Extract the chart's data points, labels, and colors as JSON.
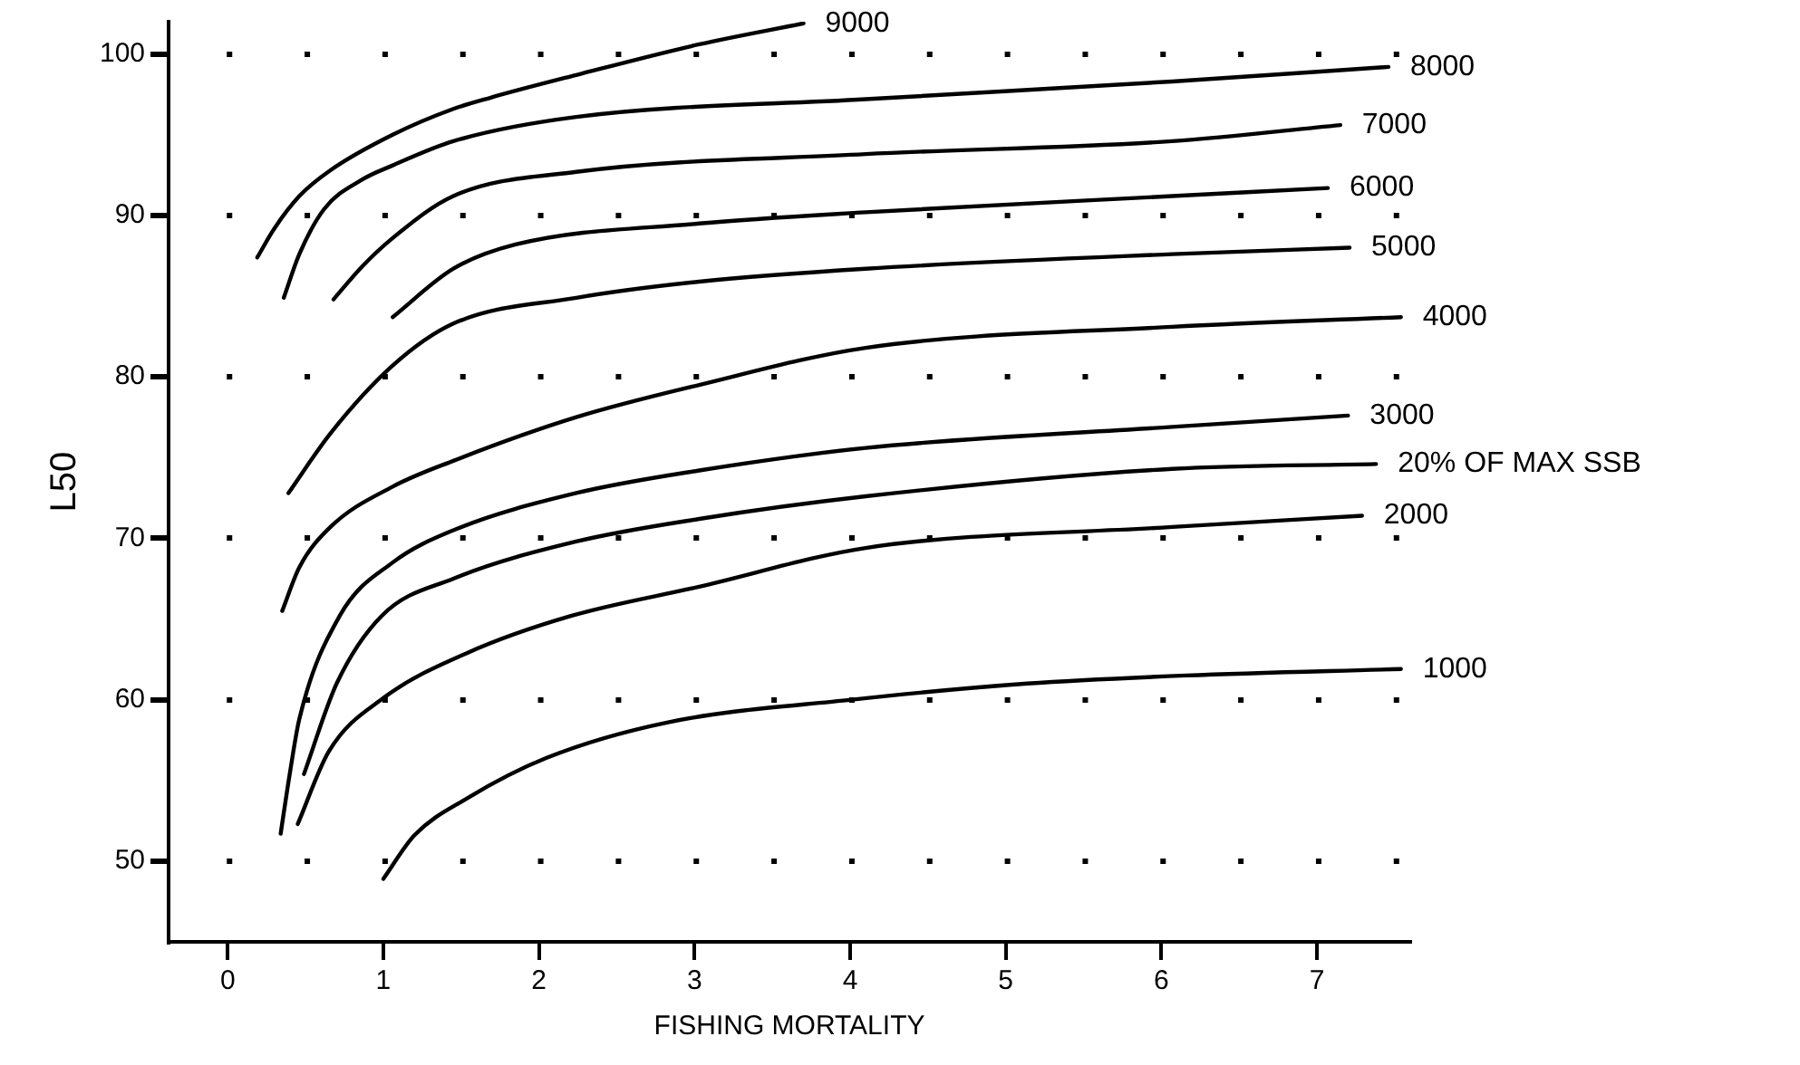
{
  "chart_data": {
    "type": "line",
    "xlabel": "FISHING MORTALITY",
    "ylabel": "L50",
    "xlim": [
      -0.38,
      7.6
    ],
    "ylim": [
      45,
      102
    ],
    "xticks": [
      0,
      1,
      2,
      3,
      4,
      5,
      6,
      7
    ],
    "yticks": [
      50,
      60,
      70,
      80,
      90,
      100
    ],
    "grid": "y",
    "legend": false,
    "marker": "none",
    "line_style": "solid",
    "series": [
      {
        "name": "9000",
        "color": "#000000",
        "x": [
          0.19,
          0.3,
          0.46,
          0.66,
          1.06,
          1.45,
          1.69,
          2.24,
          3.03,
          3.7
        ],
        "values": [
          87.4,
          89.2,
          91.2,
          92.8,
          95.0,
          96.6,
          97.3,
          98.7,
          100.6,
          101.9
        ]
      },
      {
        "name": "8000",
        "color": "#000000",
        "x": [
          0.36,
          0.46,
          0.62,
          0.86,
          1.06,
          1.45,
          2.24,
          4.1,
          6.07,
          7.46
        ],
        "values": [
          84.9,
          87.6,
          90.4,
          92.2,
          93.1,
          94.6,
          96.1,
          97.2,
          98.3,
          99.2
        ]
      },
      {
        "name": "7000",
        "color": "#000000",
        "x": [
          0.68,
          0.86,
          1.06,
          1.45,
          2.24,
          4.1,
          6.07,
          7.15
        ],
        "values": [
          84.8,
          86.8,
          88.6,
          91.2,
          92.7,
          93.8,
          94.6,
          95.6
        ]
      },
      {
        "name": "6000",
        "color": "#000000",
        "x": [
          1.06,
          1.45,
          1.85,
          3.03,
          4.1,
          6.07,
          7.07
        ],
        "values": [
          83.7,
          86.7,
          88.2,
          89.5,
          90.2,
          91.2,
          91.7
        ]
      },
      {
        "name": "5000",
        "color": "#000000",
        "x": [
          0.39,
          0.66,
          1.06,
          1.45,
          2.24,
          3.03,
          4.1,
          6.07,
          7.21
        ],
        "values": [
          72.8,
          76.5,
          80.7,
          83.3,
          84.9,
          85.9,
          86.7,
          87.6,
          88.0
        ]
      },
      {
        "name": "4000",
        "color": "#000000",
        "x": [
          0.35,
          0.46,
          0.66,
          1.06,
          1.45,
          2.24,
          3.03,
          4.1,
          6.07,
          7.54
        ],
        "values": [
          65.5,
          68.2,
          70.7,
          73.2,
          74.8,
          77.5,
          79.5,
          81.8,
          83.1,
          83.7
        ]
      },
      {
        "name": "3000",
        "color": "#000000",
        "x": [
          0.34,
          0.4,
          0.46,
          0.72,
          1.06,
          1.45,
          2.24,
          3.03,
          4.1,
          6.07,
          7.2
        ],
        "values": [
          51.7,
          55.5,
          58.8,
          65.2,
          68.5,
          70.5,
          72.8,
          74.2,
          75.6,
          76.9,
          77.6
        ]
      },
      {
        "name": "20% OF MAX SSB",
        "color": "#000000",
        "x": [
          0.49,
          0.7,
          0.99,
          1.45,
          2.24,
          3.03,
          4.1,
          6.07,
          7.38
        ],
        "values": [
          55.4,
          61.0,
          65.2,
          67.5,
          69.8,
          71.2,
          72.6,
          74.3,
          74.6
        ]
      },
      {
        "name": "2000",
        "color": "#000000",
        "x": [
          0.45,
          0.65,
          1.0,
          1.54,
          2.21,
          3.03,
          4.1,
          6.07,
          7.29
        ],
        "values": [
          52.3,
          56.8,
          60.1,
          62.9,
          65.2,
          67.0,
          69.4,
          70.7,
          71.4
        ]
      },
      {
        "name": "1000",
        "color": "#000000",
        "x": [
          1.0,
          1.2,
          1.54,
          2.05,
          2.83,
          4.01,
          5.14,
          6.16,
          7.54
        ],
        "values": [
          48.9,
          51.6,
          53.9,
          56.4,
          58.6,
          60.0,
          61.0,
          61.5,
          61.9
        ]
      }
    ]
  }
}
